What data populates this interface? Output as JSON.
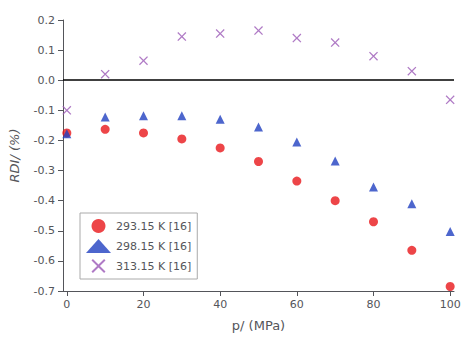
{
  "chart_data": {
    "type": "scatter",
    "series": [
      {
        "name": "293.15 K [16]",
        "color": "#e8171a",
        "marker": "circle",
        "x": [
          0,
          10,
          20,
          30,
          40,
          50,
          60,
          70,
          80,
          90,
          100
        ],
        "values": [
          -0.175,
          -0.163,
          -0.175,
          -0.195,
          -0.225,
          -0.27,
          -0.335,
          -0.4,
          -0.47,
          -0.565,
          -0.685
        ]
      },
      {
        "name": "298.15 K [16]",
        "color": "#2040c0",
        "marker": "triangle",
        "x": [
          0,
          10,
          20,
          30,
          40,
          50,
          60,
          70,
          80,
          90,
          100
        ],
        "values": [
          -0.178,
          -0.122,
          -0.118,
          -0.118,
          -0.13,
          -0.155,
          -0.205,
          -0.268,
          -0.355,
          -0.41,
          -0.502
        ]
      },
      {
        "name": "313.15 K [16]",
        "color": "#9b59b6",
        "marker": "x",
        "x": [
          0,
          10,
          20,
          30,
          40,
          50,
          60,
          70,
          80,
          90,
          100
        ],
        "values": [
          -0.1,
          0.02,
          0.065,
          0.145,
          0.155,
          0.165,
          0.14,
          0.125,
          0.08,
          0.03,
          -0.065
        ]
      }
    ],
    "x_label": "p/ (MPa)",
    "y_label": "RDI/ (%)",
    "xlim": [
      -1,
      101
    ],
    "ylim": [
      -0.7,
      0.2
    ],
    "xticks": [
      0,
      20,
      40,
      60,
      80,
      100
    ],
    "yticks": [
      -0.7,
      -0.6,
      -0.5,
      -0.4,
      -0.3,
      -0.2,
      -0.1,
      {
        "value": 0,
        "label": "0.0"
      },
      0.1,
      0.2
    ],
    "reference_lines": [
      {
        "y": 0,
        "color": "#000000"
      }
    ],
    "legend": "lower left",
    "grid": false
  }
}
